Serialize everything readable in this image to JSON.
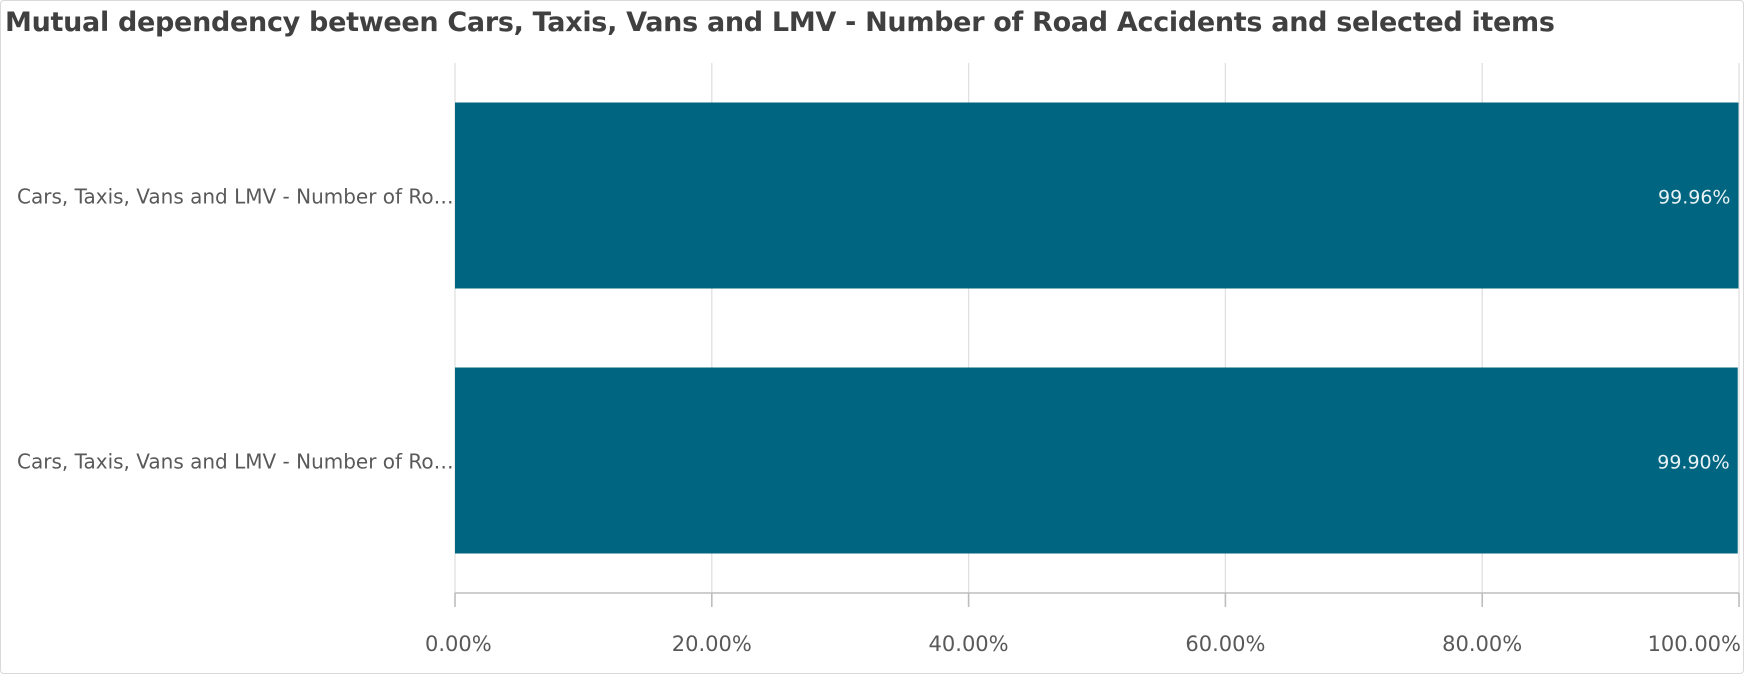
{
  "title": "Mutual dependency between Cars, Taxis, Vans and LMV - Number of Road Accidents and selected items",
  "chart_data": {
    "type": "bar",
    "orientation": "horizontal",
    "title": "Mutual dependency between Cars, Taxis, Vans and LMV - Number of Road Accidents and selected items",
    "categories": [
      "Cars, Taxis, Vans and LMV - Number of Ro…",
      "Cars, Taxis, Vans and LMV - Number of Ro…"
    ],
    "values": [
      99.96,
      99.9
    ],
    "data_labels": [
      "99.96%",
      "99.90%"
    ],
    "xlim": [
      0,
      100
    ],
    "x_ticks": [
      0,
      20,
      40,
      60,
      80,
      100
    ],
    "x_tick_labels": [
      "0.00%",
      "20.00%",
      "40.00%",
      "60.00%",
      "80.00%",
      "100.00%"
    ],
    "grid": true,
    "legend": "none",
    "bar_color": "#006580"
  }
}
